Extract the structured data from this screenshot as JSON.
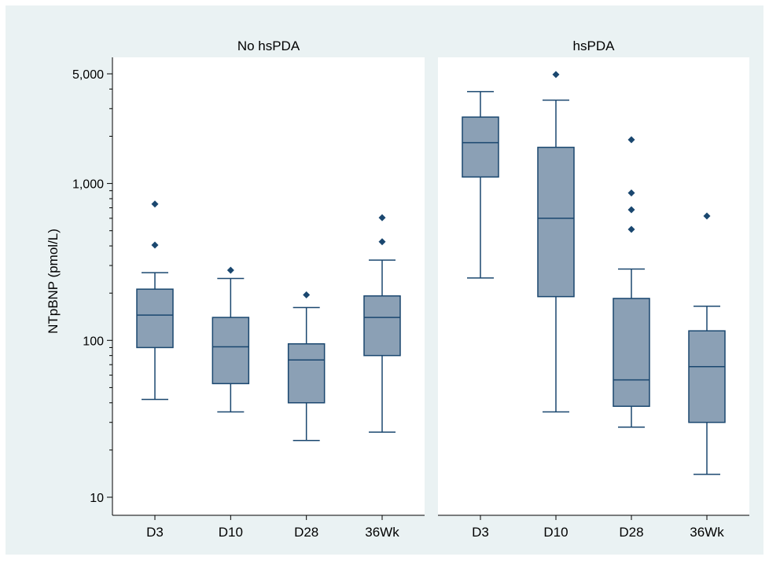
{
  "chart_data": {
    "type": "box",
    "ylabel": "NTpBNP (pmol/L)",
    "yscale": "log",
    "ylim": [
      10,
      5000
    ],
    "yticks": [
      {
        "value": 5000,
        "label": "5,000"
      },
      {
        "value": 1000,
        "label": "1,000"
      },
      {
        "value": 100,
        "label": "100"
      },
      {
        "value": 10,
        "label": "10"
      }
    ],
    "yminor": [
      20,
      30,
      40,
      50,
      60,
      70,
      80,
      90,
      200,
      300,
      400,
      500,
      600,
      700,
      800,
      900,
      2000,
      3000,
      4000
    ],
    "categories": [
      "D3",
      "D10",
      "D28",
      "36Wk"
    ],
    "grid": false,
    "colors": {
      "box_fill": "#8ba0b5",
      "box_stroke": "#1a476f",
      "outlier": "#1a476f",
      "panel_header": "#eaf2f3",
      "background": "#eaf2f3"
    },
    "panels": [
      {
        "title": "No hsPDA",
        "boxes": [
          {
            "category": "D3",
            "q1": 90,
            "median": 145,
            "q3": 212,
            "whisker_low": 42,
            "whisker_high": 270,
            "outliers": [
              740,
              405
            ]
          },
          {
            "category": "D10",
            "q1": 53,
            "median": 91,
            "q3": 140,
            "whisker_low": 35,
            "whisker_high": 248,
            "outliers": [
              280
            ]
          },
          {
            "category": "D28",
            "q1": 40,
            "median": 75,
            "q3": 95,
            "whisker_low": 23,
            "whisker_high": 162,
            "outliers": [
              195
            ]
          },
          {
            "category": "36Wk",
            "q1": 80,
            "median": 140,
            "q3": 192,
            "whisker_low": 26,
            "whisker_high": 325,
            "outliers": [
              605,
              425
            ]
          }
        ]
      },
      {
        "title": "hsPDA",
        "boxes": [
          {
            "category": "D3",
            "q1": 1100,
            "median": 1820,
            "q3": 2650,
            "whisker_low": 250,
            "whisker_high": 3850,
            "outliers": []
          },
          {
            "category": "D10",
            "q1": 190,
            "median": 600,
            "q3": 1700,
            "whisker_low": 35,
            "whisker_high": 3400,
            "outliers": [
              4950
            ]
          },
          {
            "category": "D28",
            "q1": 38,
            "median": 56,
            "q3": 185,
            "whisker_low": 28,
            "whisker_high": 285,
            "outliers": [
              1900,
              870,
              680,
              510
            ]
          },
          {
            "category": "36Wk",
            "q1": 30,
            "median": 68,
            "q3": 115,
            "whisker_low": 14,
            "whisker_high": 165,
            "outliers": [
              620
            ]
          }
        ]
      }
    ]
  }
}
